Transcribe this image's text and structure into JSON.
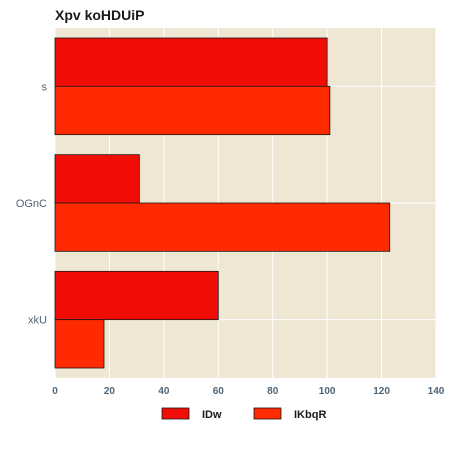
{
  "chart_data": {
    "type": "bar",
    "orientation": "horizontal",
    "title": "Xpv koHDUiP",
    "xlabel": "",
    "ylabel": "",
    "categories": [
      "s",
      "OGnC",
      "xkU"
    ],
    "series": [
      {
        "name": "IDw",
        "values": [
          100,
          31,
          60
        ],
        "color": "#f00d05"
      },
      {
        "name": "IKbqR",
        "values": [
          101,
          123,
          18
        ],
        "color": "#ff2a00"
      }
    ],
    "xlim": [
      0,
      140
    ],
    "xticks": [
      "0",
      "20",
      "40",
      "60",
      "80",
      "100",
      "120",
      "140"
    ],
    "grid": true,
    "legend_position": "bottom-center",
    "background_color": "#efe7d4"
  }
}
